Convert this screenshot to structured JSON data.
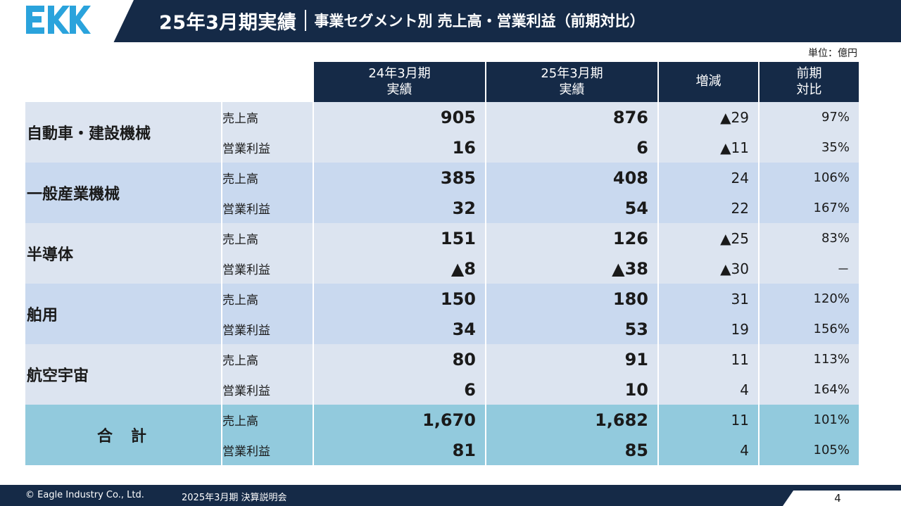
{
  "header": {
    "logo_text": "EKK",
    "title_main": "25年3月期実績",
    "title_sub": "事業セグメント別 売上高・営業利益（前期対比）"
  },
  "unit_note": "単位：億円",
  "columns": [
    "24年3月期\n実績",
    "25年3月期\n実績",
    "増減",
    "前期\n対比"
  ],
  "segments": [
    {
      "name": "自動車・建設機械",
      "rows": [
        {
          "metric": "売上高",
          "prev": "905",
          "curr": "876",
          "change": "▲29",
          "ratio": "97%"
        },
        {
          "metric": "営業利益",
          "prev": "16",
          "curr": "6",
          "change": "▲11",
          "ratio": "35%"
        }
      ]
    },
    {
      "name": "一般産業機械",
      "rows": [
        {
          "metric": "売上高",
          "prev": "385",
          "curr": "408",
          "change": "24",
          "ratio": "106%"
        },
        {
          "metric": "営業利益",
          "prev": "32",
          "curr": "54",
          "change": "22",
          "ratio": "167%"
        }
      ]
    },
    {
      "name": "半導体",
      "rows": [
        {
          "metric": "売上高",
          "prev": "151",
          "curr": "126",
          "change": "▲25",
          "ratio": "83%"
        },
        {
          "metric": "営業利益",
          "prev": "▲8",
          "curr": "▲38",
          "change": "▲30",
          "ratio": "－"
        }
      ]
    },
    {
      "name": "舶用",
      "rows": [
        {
          "metric": "売上高",
          "prev": "150",
          "curr": "180",
          "change": "31",
          "ratio": "120%"
        },
        {
          "metric": "営業利益",
          "prev": "34",
          "curr": "53",
          "change": "19",
          "ratio": "156%"
        }
      ]
    },
    {
      "name": "航空宇宙",
      "rows": [
        {
          "metric": "売上高",
          "prev": "80",
          "curr": "91",
          "change": "11",
          "ratio": "113%"
        },
        {
          "metric": "営業利益",
          "prev": "6",
          "curr": "10",
          "change": "4",
          "ratio": "164%"
        }
      ]
    },
    {
      "name": "合計",
      "rows": [
        {
          "metric": "売上高",
          "prev": "1,670",
          "curr": "1,682",
          "change": "11",
          "ratio": "101%"
        },
        {
          "metric": "営業利益",
          "prev": "81",
          "curr": "85",
          "change": "4",
          "ratio": "105%"
        }
      ]
    }
  ],
  "footer": {
    "copyright": "© Eagle Industry Co., Ltd.",
    "event": "2025年3月期 決算説明会",
    "page": "4"
  }
}
